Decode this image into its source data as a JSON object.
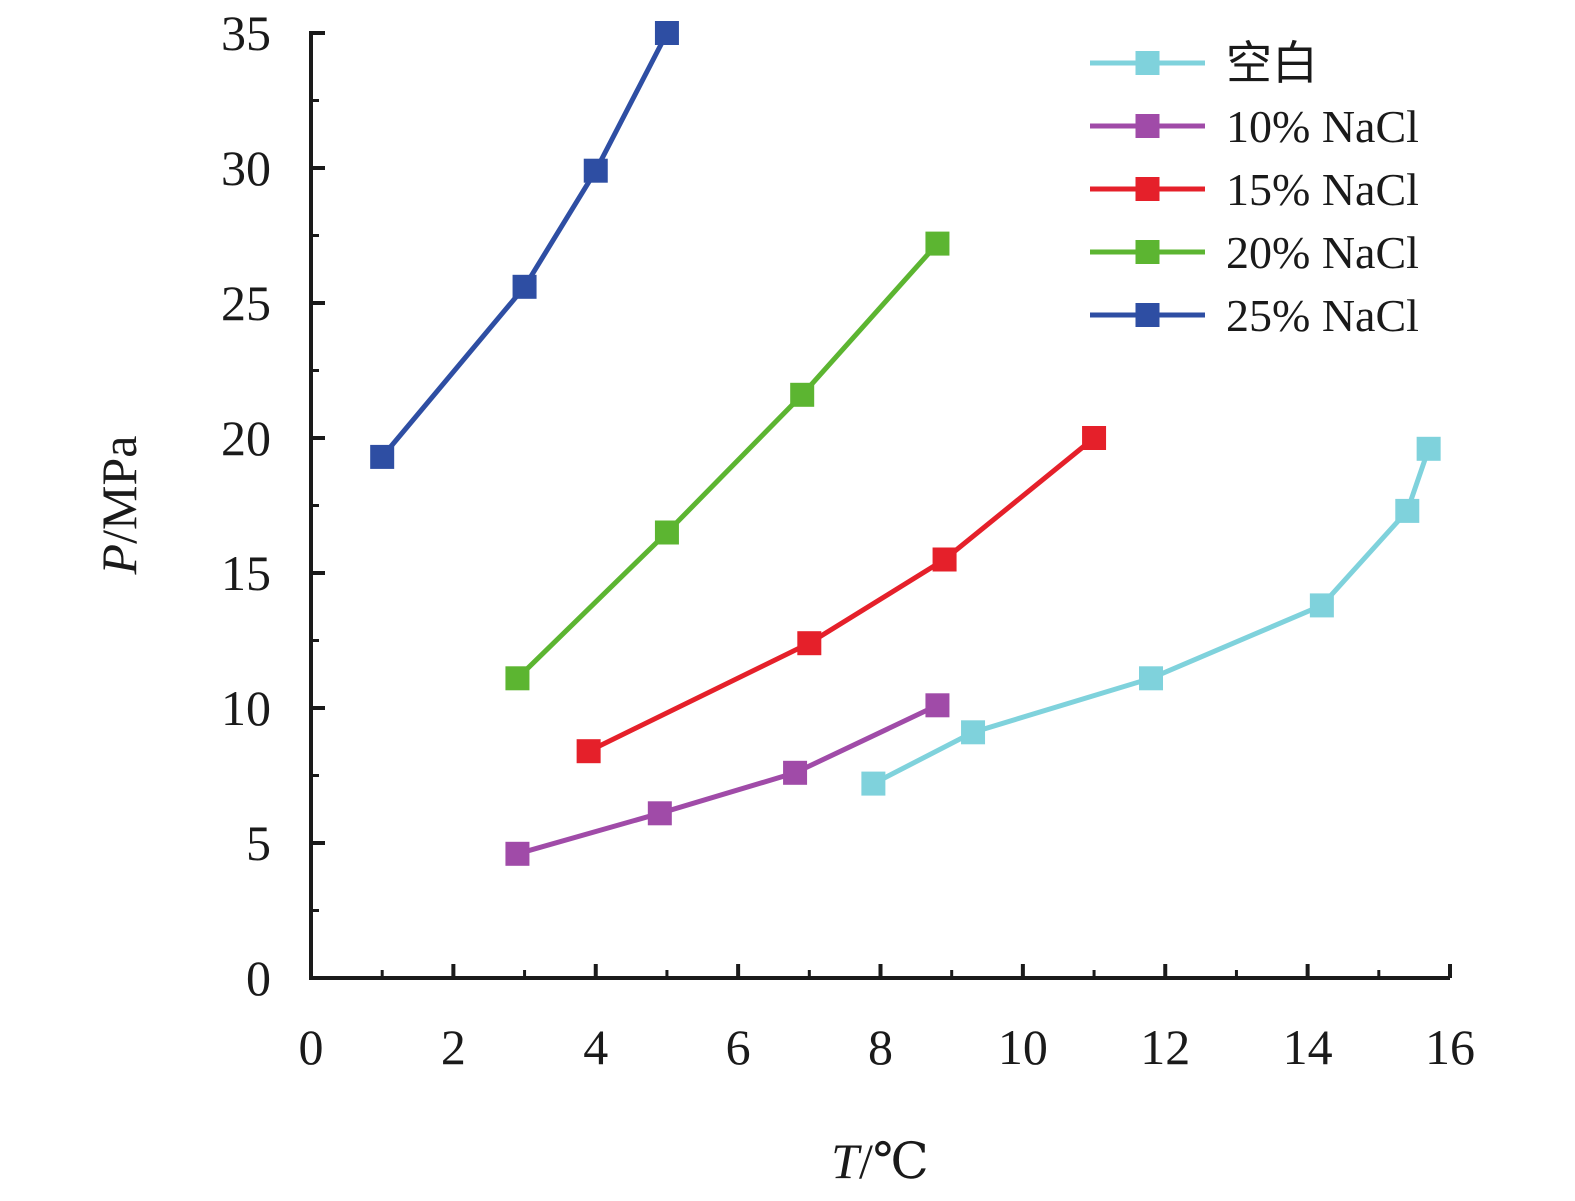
{
  "chart_data": {
    "type": "line",
    "xlabel": {
      "var": "T",
      "unit": "/℃"
    },
    "ylabel": {
      "var": "P",
      "unit": "/MPa"
    },
    "xlim": [
      0,
      16
    ],
    "ylim": [
      0,
      35
    ],
    "xticks": [
      0,
      2,
      4,
      6,
      8,
      10,
      12,
      14,
      16
    ],
    "yticks": [
      0,
      5,
      10,
      15,
      20,
      25,
      30,
      35
    ],
    "grid": false,
    "legend_position": "top-right",
    "marker": "square",
    "series": [
      {
        "name": "空白",
        "color": "#7fd2dc",
        "x": [
          7.9,
          9.3,
          11.8,
          14.2,
          15.4,
          15.7
        ],
        "y": [
          7.2,
          9.1,
          11.1,
          13.8,
          17.3,
          19.6
        ]
      },
      {
        "name": "10% NaCl",
        "color": "#a04ba8",
        "x": [
          2.9,
          4.9,
          6.8,
          8.8
        ],
        "y": [
          4.6,
          6.1,
          7.6,
          10.1
        ]
      },
      {
        "name": "15% NaCl",
        "color": "#e5202a",
        "x": [
          3.9,
          7.0,
          8.9,
          11.0
        ],
        "y": [
          8.4,
          12.4,
          15.5,
          20.0
        ]
      },
      {
        "name": "20% NaCl",
        "color": "#5cb531",
        "x": [
          2.9,
          5.0,
          6.9,
          8.8
        ],
        "y": [
          11.1,
          16.5,
          21.6,
          27.2
        ]
      },
      {
        "name": "25% NaCl",
        "color": "#2e4ea3",
        "x": [
          1.0,
          3.0,
          4.0,
          5.0
        ],
        "y": [
          19.3,
          25.6,
          29.9,
          35.0
        ]
      }
    ]
  }
}
